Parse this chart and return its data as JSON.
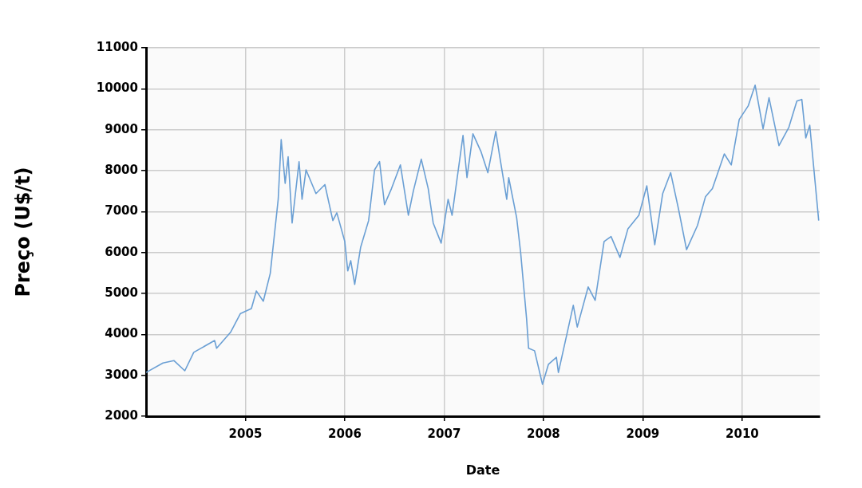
{
  "chart_data": {
    "type": "line",
    "xlabel": "Date",
    "ylabel": "Preço (U$/t)",
    "xlim": [
      2004.0,
      2010.78
    ],
    "xticks": [
      2005,
      2006,
      2007,
      2008,
      2009,
      2010
    ],
    "ylim": [
      2000,
      11000
    ],
    "yticks": [
      2000,
      3000,
      4000,
      5000,
      6000,
      7000,
      8000,
      9000,
      10000,
      11000
    ],
    "grid": true,
    "legend": false,
    "marker": "none",
    "line_style": "solid",
    "series": [
      {
        "color": "#6a9fd4",
        "x": [
          2004.0,
          2004.17,
          2004.28,
          2004.39,
          2004.48,
          2004.69,
          2004.71,
          2004.85,
          2004.95,
          2005.06,
          2005.11,
          2005.18,
          2005.25,
          2005.33,
          2005.36,
          2005.4,
          2005.43,
          2005.47,
          2005.54,
          2005.57,
          2005.61,
          2005.71,
          2005.8,
          2005.88,
          2005.92,
          2006.0,
          2006.03,
          2006.06,
          2006.1,
          2006.16,
          2006.24,
          2006.3,
          2006.35,
          2006.4,
          2006.47,
          2006.56,
          2006.64,
          2006.69,
          2006.77,
          2006.84,
          2006.89,
          2006.97,
          2007.04,
          2007.08,
          2007.19,
          2007.23,
          2007.29,
          2007.37,
          2007.44,
          2007.52,
          2007.56,
          2007.63,
          2007.65,
          2007.73,
          2007.77,
          2007.83,
          2007.85,
          2007.91,
          2007.99,
          2008.05,
          2008.13,
          2008.15,
          2008.3,
          2008.34,
          2008.45,
          2008.52,
          2008.61,
          2008.68,
          2008.77,
          2008.85,
          2008.96,
          2009.04,
          2009.12,
          2009.2,
          2009.28,
          2009.36,
          2009.44,
          2009.55,
          2009.63,
          2009.7,
          2009.82,
          2009.89,
          2009.97,
          2010.06,
          2010.13,
          2010.21,
          2010.27,
          2010.37,
          2010.47,
          2010.55,
          2010.6,
          2010.64,
          2010.68,
          2010.77
        ],
        "values": [
          3070,
          3300,
          3360,
          3110,
          3560,
          3850,
          3660,
          4050,
          4510,
          4630,
          5060,
          4810,
          5490,
          7300,
          8760,
          7690,
          8340,
          6720,
          8220,
          7300,
          8020,
          7440,
          7660,
          6780,
          6970,
          6270,
          5550,
          5800,
          5220,
          6130,
          6780,
          8020,
          8220,
          7170,
          7560,
          8140,
          6910,
          7500,
          8280,
          7560,
          6720,
          6230,
          7300,
          6910,
          8860,
          7830,
          8900,
          8470,
          7950,
          8960,
          8340,
          7300,
          7830,
          6850,
          6000,
          4380,
          3660,
          3600,
          2780,
          3270,
          3440,
          3070,
          4710,
          4180,
          5160,
          4830,
          6270,
          6390,
          5880,
          6580,
          6910,
          7630,
          6190,
          7440,
          7950,
          7050,
          6070,
          6660,
          7360,
          7560,
          8410,
          8140,
          9250,
          9580,
          10090,
          9020,
          9780,
          8610,
          9060,
          9700,
          9740,
          8800,
          9110,
          6780
        ]
      }
    ]
  }
}
